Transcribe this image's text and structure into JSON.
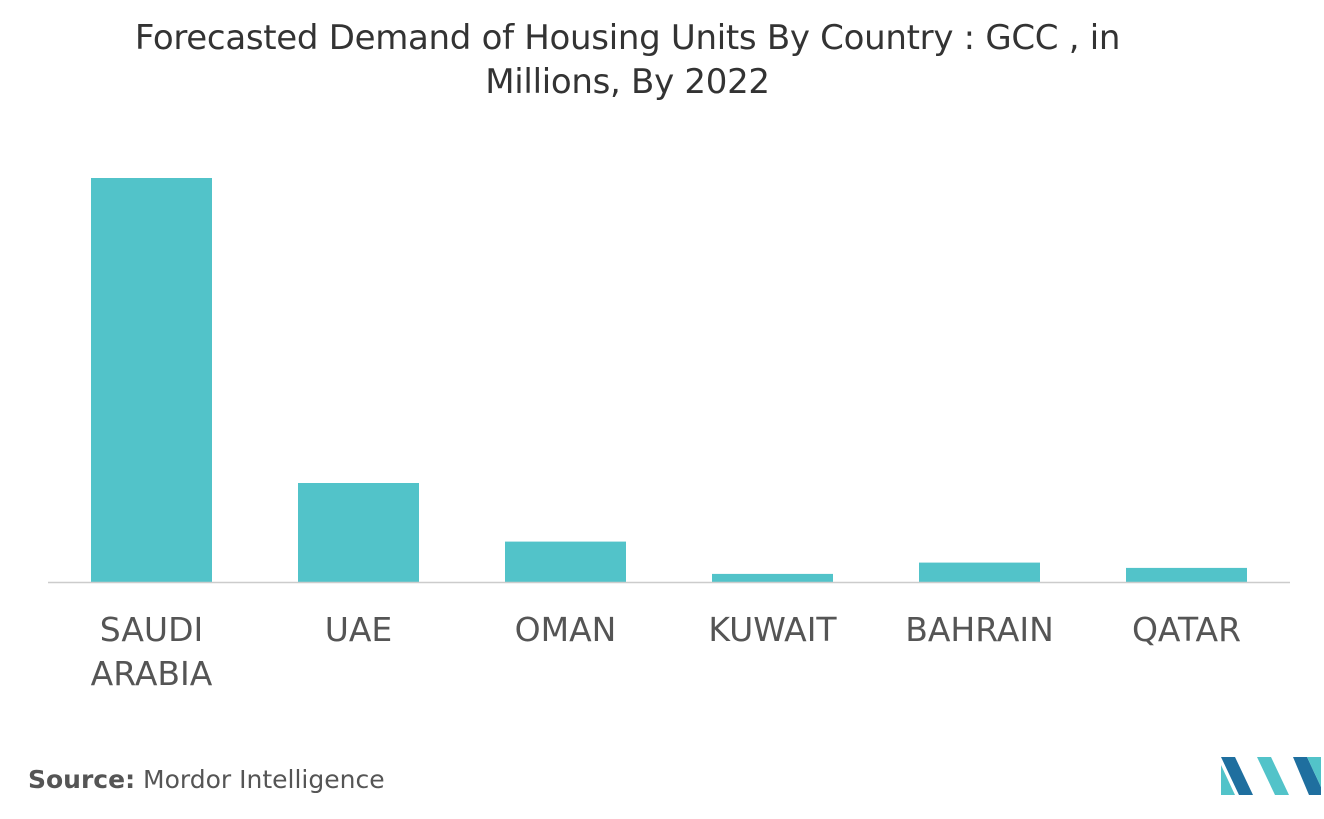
{
  "chart_data": {
    "type": "bar",
    "title": "Forecasted Demand of Housing Units By Country : GCC , in Millions, By 2022",
    "categories": [
      "SAUDI ARABIA",
      "UAE",
      "OMAN",
      "KUWAIT",
      "BAHRAIN",
      "QATAR"
    ],
    "category_lines": [
      [
        "SAUDI",
        "ARABIA"
      ],
      [
        "UAE"
      ],
      [
        "OMAN"
      ],
      [
        "KUWAIT"
      ],
      [
        "BAHRAIN"
      ],
      [
        "QATAR"
      ]
    ],
    "values": [
      1.0,
      0.245,
      0.1,
      0.02,
      0.048,
      0.035
    ],
    "ylim": [
      0,
      1.0
    ],
    "bar_color": "#52c3c9",
    "axis_color": "#cccccc",
    "grid": false,
    "legend": "none",
    "yaxis_visible": false
  },
  "source": {
    "label": "Source:",
    "text": "Mordor Intelligence"
  },
  "logo": {
    "icon": "mordor-intelligence-logo-icon",
    "colors": [
      "#1f6f9f",
      "#52c3c9"
    ]
  }
}
